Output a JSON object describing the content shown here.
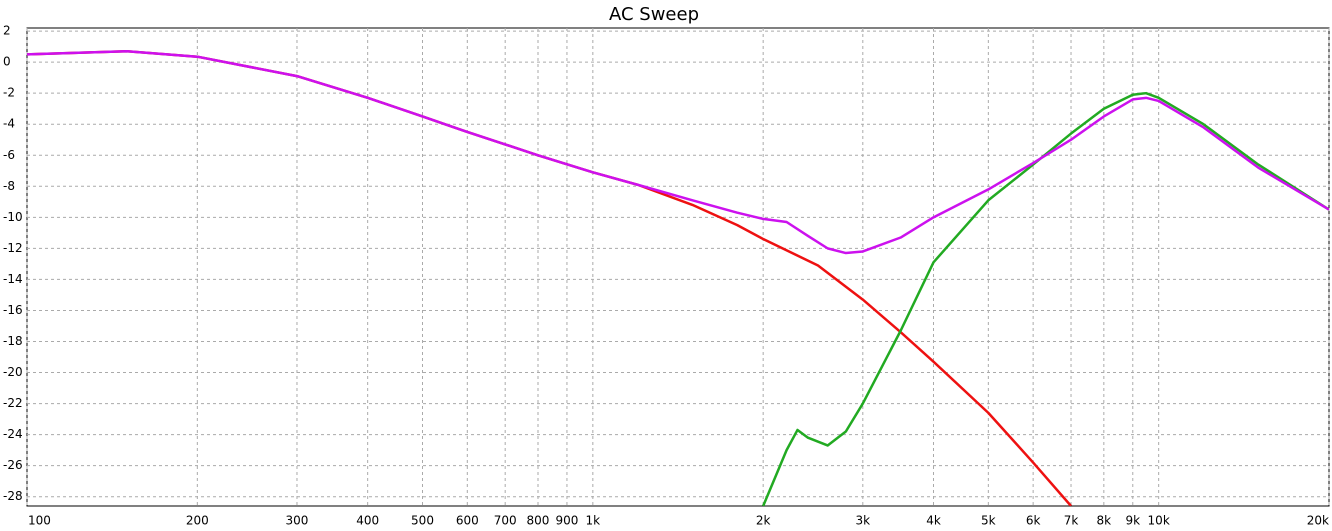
{
  "chart_data": {
    "type": "line",
    "title": "AC Sweep",
    "log_x": true,
    "grid": true,
    "xlim": [
      100,
      20000
    ],
    "ylim": [
      -28.6,
      2.2
    ],
    "xticks": [
      100,
      200,
      300,
      400,
      500,
      600,
      700,
      800,
      900,
      {
        "value": 1000,
        "label": "1k"
      },
      {
        "value": 2000,
        "label": "2k"
      },
      {
        "value": 3000,
        "label": "3k"
      },
      {
        "value": 4000,
        "label": "4k"
      },
      {
        "value": 5000,
        "label": "5k"
      },
      {
        "value": 6000,
        "label": "6k"
      },
      {
        "value": 7000,
        "label": "7k"
      },
      {
        "value": 8000,
        "label": "8k"
      },
      {
        "value": 9000,
        "label": "9k"
      },
      {
        "value": 10000,
        "label": "10k"
      },
      {
        "value": 20000,
        "label": "20k"
      }
    ],
    "yticks": [
      2,
      0,
      -2,
      -4,
      -6,
      -8,
      -10,
      -12,
      -14,
      -16,
      -18,
      -20,
      -22,
      -24,
      -26,
      -28
    ],
    "series": [
      {
        "color": "#ee1111",
        "x": [
          100,
          150,
          200,
          300,
          400,
          500,
          600,
          700,
          800,
          1000,
          1200,
          1500,
          1800,
          2000,
          2500,
          3000,
          3500,
          4000,
          5000,
          6000,
          7000
        ],
        "values": [
          0.5,
          0.7,
          0.35,
          -0.9,
          -2.3,
          -3.5,
          -4.5,
          -5.3,
          -6.0,
          -7.1,
          -7.9,
          -9.2,
          -10.5,
          -11.4,
          -13.1,
          -15.3,
          -17.4,
          -19.3,
          -22.6,
          -25.8,
          -28.6
        ]
      },
      {
        "color": "#22aa22",
        "x": [
          2000,
          2200,
          2300,
          2400,
          2600,
          2800,
          3000,
          3500,
          4000,
          5000,
          6000,
          7000,
          8000,
          9000,
          9500,
          10000,
          12000,
          15000,
          20000
        ],
        "values": [
          -28.6,
          -25.0,
          -23.7,
          -24.2,
          -24.7,
          -23.8,
          -22.0,
          -17.3,
          -12.9,
          -8.9,
          -6.6,
          -4.6,
          -3.0,
          -2.1,
          -2.0,
          -2.3,
          -4.0,
          -6.6,
          -9.5
        ]
      },
      {
        "color": "#cc11ee",
        "x": [
          100,
          150,
          200,
          300,
          400,
          500,
          600,
          700,
          800,
          1000,
          1200,
          1500,
          1800,
          2000,
          2200,
          2400,
          2600,
          2800,
          3000,
          3500,
          4000,
          5000,
          6000,
          7000,
          8000,
          9000,
          9500,
          10000,
          12000,
          15000,
          20000
        ],
        "values": [
          0.5,
          0.7,
          0.35,
          -0.9,
          -2.3,
          -3.5,
          -4.5,
          -5.3,
          -6.0,
          -7.1,
          -7.9,
          -8.9,
          -9.7,
          -10.1,
          -10.3,
          -11.2,
          -12.0,
          -12.3,
          -12.2,
          -11.3,
          -10.0,
          -8.2,
          -6.5,
          -5.0,
          -3.5,
          -2.4,
          -2.3,
          -2.5,
          -4.2,
          -6.8,
          -9.5
        ]
      }
    ]
  }
}
